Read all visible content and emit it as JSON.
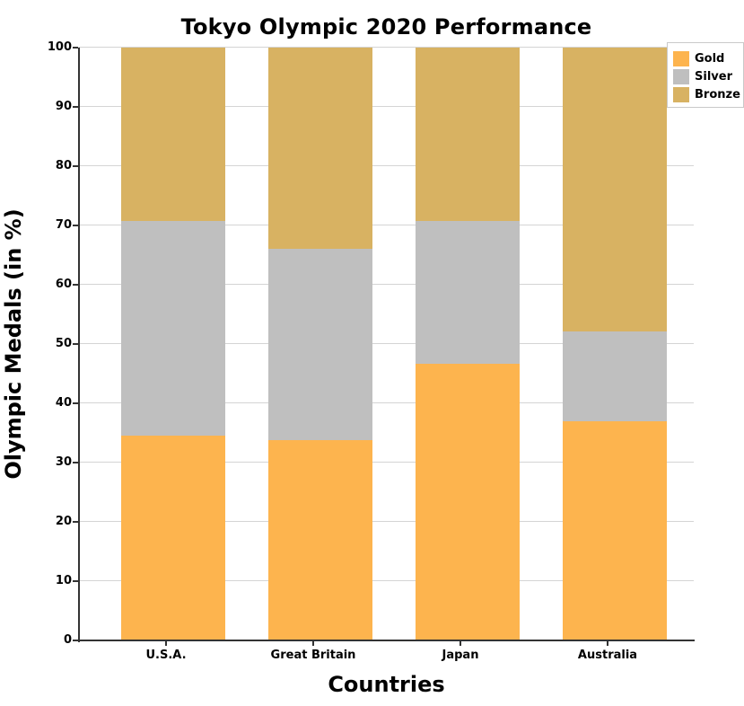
{
  "title": "Tokyo Olympic 2020 Performance",
  "axes": {
    "x_label": "Countries",
    "y_label": "Olympic Medals (in %)"
  },
  "legend": {
    "items": [
      {
        "label": "Gold",
        "color": "#FDB44E"
      },
      {
        "label": "Silver",
        "color": "#BFBFBF"
      },
      {
        "label": "Bronze",
        "color": "#D8B262"
      }
    ]
  },
  "chart_data": {
    "type": "bar",
    "stacked": true,
    "title": "Tokyo Olympic 2020 Performance",
    "xlabel": "Countries",
    "ylabel": "Olympic Medals (in %)",
    "categories": [
      "U.S.A.",
      "Great Britain",
      "Japan",
      "Australia"
    ],
    "series": [
      {
        "name": "Gold",
        "color": "#FDB44E",
        "values": [
          34.5,
          33.8,
          46.6,
          37.0
        ]
      },
      {
        "name": "Silver",
        "color": "#BFBFBF",
        "values": [
          36.3,
          32.3,
          24.1,
          15.2
        ]
      },
      {
        "name": "Bronze",
        "color": "#D8B262",
        "values": [
          29.2,
          33.9,
          29.3,
          47.8
        ]
      }
    ],
    "ylim": [
      0,
      100
    ],
    "yticks": [
      0,
      10,
      20,
      30,
      40,
      50,
      60,
      70,
      80,
      90,
      100
    ],
    "grid": true,
    "legend_position": "upper right"
  }
}
